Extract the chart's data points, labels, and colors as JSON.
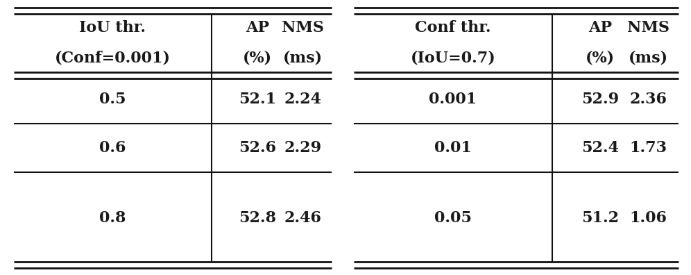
{
  "left_headers_line1": [
    "IoU thr.",
    "AP",
    "NMS"
  ],
  "left_headers_line2": [
    "(Conf=0.001)",
    "(%)",
    "(ms)"
  ],
  "right_headers_line1": [
    "Conf thr.",
    "AP",
    "NMS"
  ],
  "right_headers_line2": [
    "(IoU=0.7)",
    "(%)",
    "(ms)"
  ],
  "left_rows": [
    [
      "0.5",
      "52.1",
      "2.24"
    ],
    [
      "0.6",
      "52.6",
      "2.29"
    ],
    [
      "0.8",
      "52.8",
      "2.46"
    ]
  ],
  "right_rows": [
    [
      "0.001",
      "52.9",
      "2.36"
    ],
    [
      "0.01",
      "52.4",
      "1.73"
    ],
    [
      "0.05",
      "51.2",
      "1.06"
    ]
  ],
  "bg_color": "#ffffff",
  "text_color": "#1a1a1a",
  "line_color": "#111111",
  "header_fontsize": 16,
  "data_fontsize": 16,
  "figsize": [
    9.96,
    3.96
  ],
  "dpi": 100
}
